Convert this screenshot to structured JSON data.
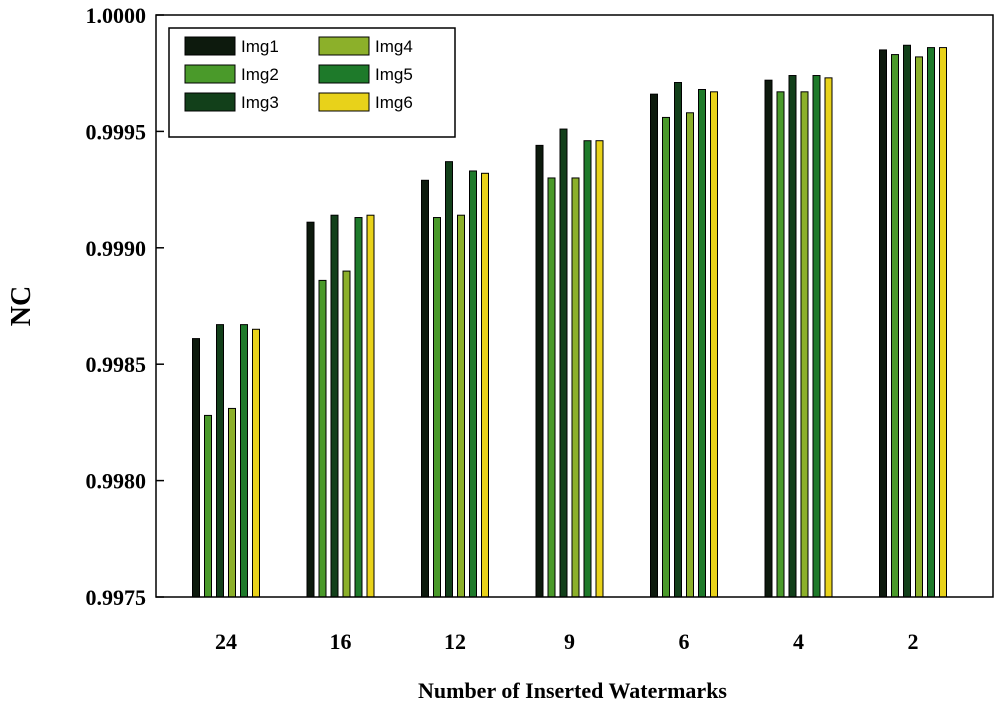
{
  "chart_data": {
    "type": "bar",
    "title": "",
    "xlabel": "Number of Inserted Watermarks",
    "ylabel": "NC",
    "ylim": [
      0.9975,
      1.0
    ],
    "yticks": [
      "0.9975",
      "0.9980",
      "0.9985",
      "0.9990",
      "0.9995",
      "1.0000"
    ],
    "categories": [
      "24",
      "16",
      "12",
      "9",
      "6",
      "4",
      "2"
    ],
    "legend_position": "top-left",
    "series": [
      {
        "name": "Img1",
        "color": "#0d1a0d",
        "values": [
          0.99861,
          0.99911,
          0.99929,
          0.99944,
          0.99966,
          0.99972,
          0.99985
        ]
      },
      {
        "name": "Img2",
        "color": "#4a9a2a",
        "values": [
          0.99828,
          0.99886,
          0.99913,
          0.9993,
          0.99956,
          0.99967,
          0.99983
        ]
      },
      {
        "name": "Img3",
        "color": "#12401a",
        "values": [
          0.99867,
          0.99914,
          0.99937,
          0.99951,
          0.99971,
          0.99974,
          0.99987
        ]
      },
      {
        "name": "Img4",
        "color": "#8cb02a",
        "values": [
          0.99831,
          0.9989,
          0.99914,
          0.9993,
          0.99958,
          0.99967,
          0.99982
        ]
      },
      {
        "name": "Img5",
        "color": "#1e7a2a",
        "values": [
          0.99867,
          0.99913,
          0.99933,
          0.99946,
          0.99968,
          0.99974,
          0.99986
        ]
      },
      {
        "name": "Img6",
        "color": "#e8d21a",
        "values": [
          0.99865,
          0.99914,
          0.99932,
          0.99946,
          0.99967,
          0.99973,
          0.99986
        ]
      }
    ]
  }
}
